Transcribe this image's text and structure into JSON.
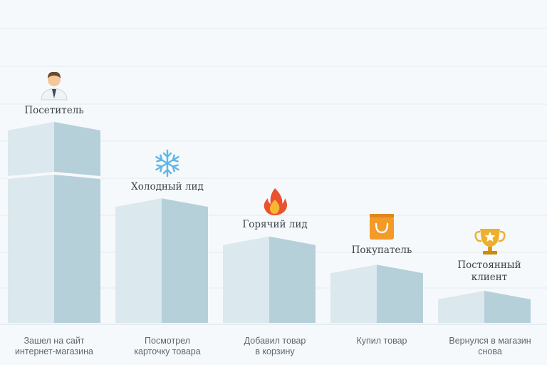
{
  "stages": [
    {
      "title": "Посетитель",
      "caption_line1": "Зашел на сайт",
      "caption_line2": "интернет-магазина",
      "icon": "person-icon",
      "level": 1.0
    },
    {
      "title": "Холодный лид",
      "caption_line1": "Посмотрел",
      "caption_line2": "карточку товара",
      "icon": "snowflake-icon",
      "level": 0.62
    },
    {
      "title": "Горячий лид",
      "caption_line1": "Добавил товар",
      "caption_line2": "в корзину",
      "icon": "fire-icon",
      "level": 0.43
    },
    {
      "title": "Покупатель",
      "caption_line1": "Купил товар",
      "caption_line2": "",
      "icon": "shopping-bag-icon",
      "level": 0.29
    },
    {
      "title_line1": "Постоянный",
      "title_line2": "клиент",
      "caption_line1": "Вернулся в магазин",
      "caption_line2": "снова",
      "icon": "trophy-icon",
      "level": 0.16
    }
  ],
  "colors": {
    "block_left": "#dbe8ee",
    "block_right": "#b6d0da",
    "grid": "#e3ebf0",
    "icon_blue": "#5fb6e6",
    "icon_orange": "#f39a27",
    "icon_red": "#e9512f",
    "icon_gold": "#eeb02c"
  }
}
